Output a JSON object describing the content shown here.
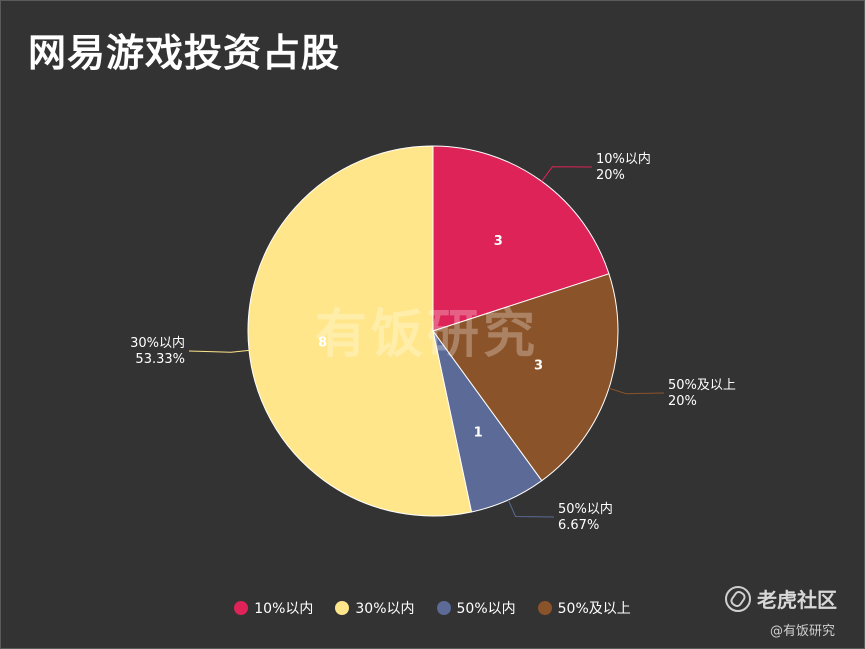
{
  "title": "网易游戏投资占股",
  "watermark": "有饭研究",
  "brand": {
    "name": "老虎社区",
    "icon": "tiger-logo-icon",
    "source": "@有饭研究"
  },
  "colors": {
    "background": "#333333",
    "series": [
      "#dd2358",
      "#8b5329",
      "#5b6a96",
      "#ffe68a"
    ]
  },
  "chart_data": {
    "type": "pie",
    "title": "网易游戏投资占股",
    "slices": [
      {
        "label": "10%以内",
        "value": 3,
        "percent": "20%",
        "color": "#dd2358"
      },
      {
        "label": "50%及以上",
        "value": 3,
        "percent": "20%",
        "color": "#8b5329"
      },
      {
        "label": "50%以内",
        "value": 1,
        "percent": "6.67%",
        "color": "#5b6a96"
      },
      {
        "label": "30%以内",
        "value": 8,
        "percent": "53.33%",
        "color": "#ffe68a"
      }
    ],
    "legend": [
      "10%以内",
      "30%以内",
      "50%以内",
      "50%及以上"
    ],
    "legend_position": "bottom"
  }
}
